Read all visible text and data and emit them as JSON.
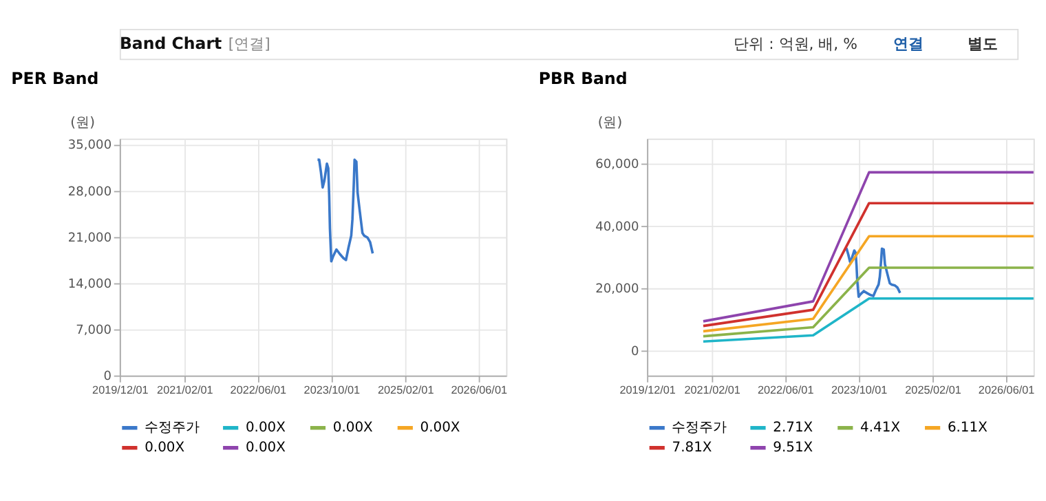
{
  "chart_data": [
    {
      "type": "line",
      "title": "PER Band",
      "ylabel": "(원)",
      "annotations": [
        "Band Chart",
        "[연결]",
        "단위 : 억원, 배, %",
        "연결",
        "별도"
      ],
      "xlim": [
        "2019-12-01",
        "2026-12-01"
      ],
      "xticks": [
        {
          "value": "2019-12-01",
          "label": "2019/12/01"
        },
        {
          "value": "2021-02-01",
          "label": "2021/02/01"
        },
        {
          "value": "2022-06-01",
          "label": "2022/06/01"
        },
        {
          "value": "2023-10-01",
          "label": "2023/10/01"
        },
        {
          "value": "2025-02-01",
          "label": "2025/02/01"
        },
        {
          "value": "2026-06-01",
          "label": "2026/06/01"
        }
      ],
      "ylim": [
        0,
        35900
      ],
      "yticks": [
        {
          "value": 0,
          "label": "0"
        },
        {
          "value": 7000,
          "label": "7,000"
        },
        {
          "value": 14000,
          "label": "14,000"
        },
        {
          "value": 21000,
          "label": "21,000"
        },
        {
          "value": 28000,
          "label": "28,000"
        },
        {
          "value": 35000,
          "label": "35,000"
        }
      ],
      "grid": true,
      "legend": "bottom",
      "marker": "none",
      "line_style": "solid",
      "series": [
        {
          "name": "수정주가",
          "color": "#3a78c9",
          "x": [
            "2023-07-02",
            "2023-07-13",
            "2023-07-24",
            "2023-08-05",
            "2023-08-16",
            "2023-09-02",
            "2023-09-11",
            "2023-09-17",
            "2023-09-22",
            "2023-10-01",
            "2023-10-12",
            "2023-11-04",
            "2023-11-27",
            "2023-12-20",
            "2024-01-06",
            "2024-01-23",
            "2024-02-10",
            "2024-02-18",
            "2024-02-27",
            "2024-03-03",
            "2024-03-15",
            "2024-03-23",
            "2024-04-07",
            "2024-04-24",
            "2024-05-05",
            "2024-05-28",
            "2024-06-14",
            "2024-07-01"
          ],
          "values": [
            32700,
            32700,
            30900,
            28500,
            29500,
            32100,
            31400,
            27300,
            22300,
            17300,
            18000,
            19100,
            18400,
            17800,
            17500,
            19400,
            21200,
            23700,
            29100,
            32700,
            32400,
            27700,
            24800,
            21600,
            21200,
            20900,
            20200,
            18500
          ]
        },
        {
          "name": "0.00X",
          "color": "#1fb5c8"
        },
        {
          "name": "0.00X",
          "color": "#8bb34a"
        },
        {
          "name": "0.00X",
          "color": "#f5a623"
        },
        {
          "name": "0.00X",
          "color": "#d0312d"
        },
        {
          "name": "0.00X",
          "color": "#8e44ad"
        }
      ]
    },
    {
      "type": "line",
      "title": "PBR Band",
      "ylabel": "(원)",
      "xlim": [
        "2019-12-01",
        "2026-12-01"
      ],
      "xticks": [
        {
          "value": "2019-12-01",
          "label": "2019/12/01"
        },
        {
          "value": "2021-02-01",
          "label": "2021/02/01"
        },
        {
          "value": "2022-06-01",
          "label": "2022/06/01"
        },
        {
          "value": "2023-10-01",
          "label": "2023/10/01"
        },
        {
          "value": "2025-02-01",
          "label": "2025/02/01"
        },
        {
          "value": "2026-06-01",
          "label": "2026/06/01"
        }
      ],
      "ylim": [
        -8000,
        68000
      ],
      "yticks": [
        {
          "value": 0,
          "label": "0"
        },
        {
          "value": 20000,
          "label": "20,000"
        },
        {
          "value": 40000,
          "label": "40,000"
        },
        {
          "value": 60000,
          "label": "60,000"
        }
      ],
      "grid": true,
      "legend": "bottom",
      "marker": "none",
      "line_style": "solid",
      "series": [
        {
          "name": "수정주가",
          "color": "#3a78c9",
          "x": [
            "2023-07-02",
            "2023-07-13",
            "2023-07-24",
            "2023-08-05",
            "2023-08-16",
            "2023-09-02",
            "2023-09-11",
            "2023-09-17",
            "2023-09-22",
            "2023-10-01",
            "2023-10-12",
            "2023-11-04",
            "2023-11-27",
            "2023-12-20",
            "2024-01-06",
            "2024-01-23",
            "2024-02-10",
            "2024-02-18",
            "2024-02-27",
            "2024-03-03",
            "2024-03-15",
            "2024-03-23",
            "2024-04-07",
            "2024-04-24",
            "2024-05-05",
            "2024-05-28",
            "2024-06-14",
            "2024-07-01"
          ],
          "values": [
            32700,
            32700,
            30900,
            28500,
            29500,
            32100,
            31400,
            27300,
            22300,
            17300,
            18000,
            19100,
            18400,
            17800,
            17500,
            19400,
            21200,
            23700,
            29100,
            32700,
            32400,
            27700,
            24800,
            21600,
            21200,
            20900,
            20200,
            18500
          ]
        },
        {
          "name": "2.71X",
          "color": "#1fb5c8",
          "x": [
            "2020-12-07",
            "2022-12-04",
            "2023-12-09",
            "2026-12-01"
          ],
          "values": [
            2900,
            4900,
            16700,
            16700
          ]
        },
        {
          "name": "4.41X",
          "color": "#8bb34a",
          "x": [
            "2020-12-07",
            "2022-12-04",
            "2023-12-09",
            "2026-12-01"
          ],
          "values": [
            4600,
            7500,
            26600,
            26600
          ]
        },
        {
          "name": "6.11X",
          "color": "#f5a623",
          "x": [
            "2020-12-07",
            "2022-12-04",
            "2023-12-09",
            "2026-12-01"
          ],
          "values": [
            6200,
            10200,
            36700,
            36700
          ]
        },
        {
          "name": "7.81X",
          "color": "#d0312d",
          "x": [
            "2020-12-07",
            "2022-12-04",
            "2023-12-09",
            "2026-12-01"
          ],
          "values": [
            7900,
            13100,
            47300,
            47300
          ]
        },
        {
          "name": "9.51X",
          "color": "#8e44ad",
          "x": [
            "2020-12-07",
            "2022-12-04",
            "2023-12-09",
            "2026-12-01"
          ],
          "values": [
            9400,
            15800,
            57200,
            57200
          ]
        }
      ]
    }
  ]
}
